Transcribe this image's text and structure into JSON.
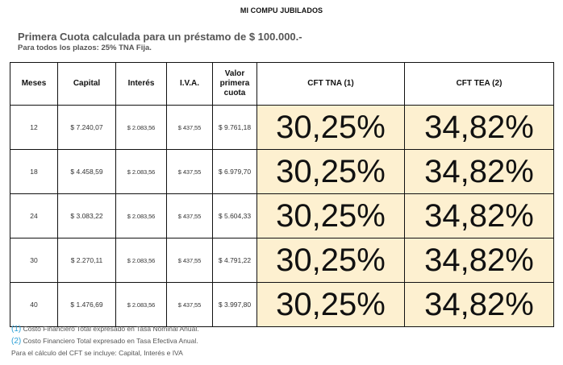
{
  "header": {
    "title": "MI COMPU JUBILADOS"
  },
  "intro": {
    "headline": "Primera Cuota calculada para un préstamo de $ 100.000.-",
    "subline": "Para todos los plazos: 25% TNA Fija."
  },
  "table": {
    "headers": {
      "meses": "Meses",
      "capital": "Capital",
      "interes": "Interés",
      "iva": "I.V.A.",
      "valor_line1": "Valor",
      "valor_line2": "primera",
      "valor_line3": "cuota",
      "cft_tna": "CFT TNA (1)",
      "cft_tea": "CFT TEA (2)"
    },
    "rows": [
      {
        "meses": "12",
        "capital": "$ 7.240,07",
        "interes": "$ 2.083,56",
        "iva": "$ 437,55",
        "valor": "$ 9.761,18",
        "cft_tna": "30,25%",
        "cft_tea": "34,82%"
      },
      {
        "meses": "18",
        "capital": "$ 4.458,59",
        "interes": "$ 2.083,56",
        "iva": "$ 437,55",
        "valor": "$ 6.979,70",
        "cft_tna": "30,25%",
        "cft_tea": "34,82%"
      },
      {
        "meses": "24",
        "capital": "$ 3.083,22",
        "interes": "$ 2.083,56",
        "iva": "$ 437,55",
        "valor": "$ 5.604,33",
        "cft_tna": "30,25%",
        "cft_tea": "34,82%"
      },
      {
        "meses": "30",
        "capital": "$ 2.270,11",
        "interes": "$ 2.083,56",
        "iva": "$ 437,55",
        "valor": "$ 4.791,22",
        "cft_tna": "30,25%",
        "cft_tea": "34,82%"
      },
      {
        "meses": "40",
        "capital": "$ 1.476,69",
        "interes": "$ 2.083,56",
        "iva": "$ 437,55",
        "valor": "$ 3.997,80",
        "cft_tna": "30,25%",
        "cft_tea": "34,82%"
      }
    ]
  },
  "footnotes": {
    "n1_marker": "(1)",
    "n1_text": " Costo Financiero Total expresado en Tasa Nominal Anual.",
    "n2_marker": "(2)",
    "n2_text": " Costo Financiero Total expresado en Tasa Efectiva Anual.",
    "n3_text": "Para el cálculo del CFT se incluye: Capital, Interés e IVA"
  },
  "colors": {
    "highlight": "#fdf0d0",
    "footnote_marker": "#2a9fd6"
  }
}
